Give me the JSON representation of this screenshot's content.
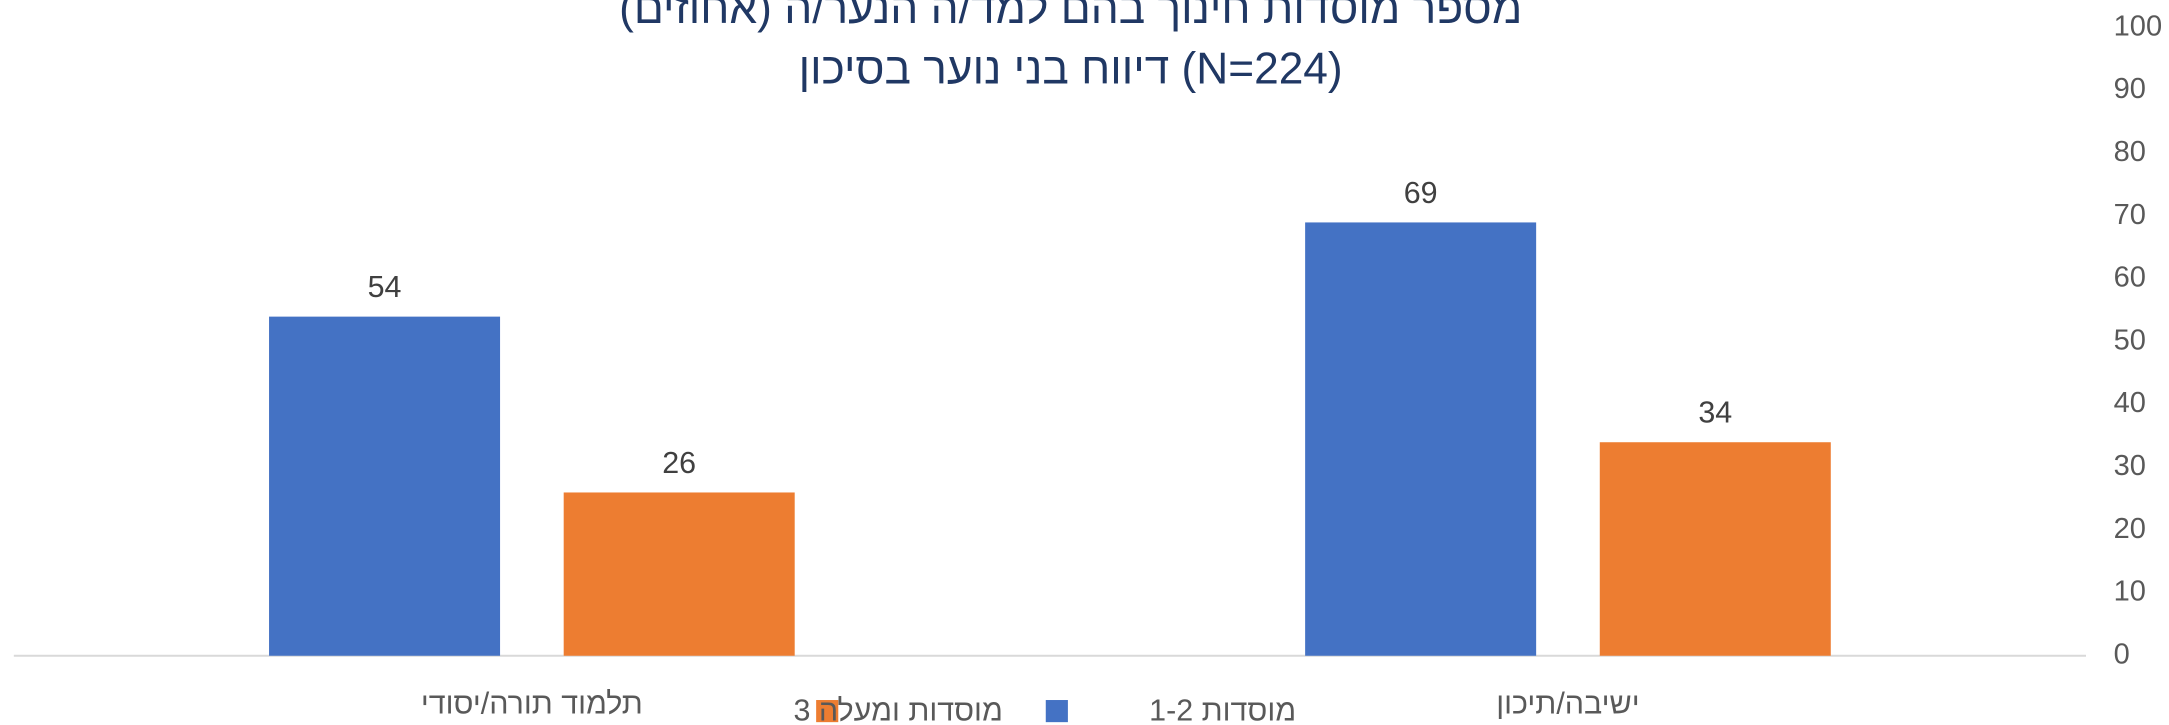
{
  "chart_data": {
    "type": "bar",
    "title": "מספר מוסדות חינוך בהם למד/ה הנער/ה (אחוזים)",
    "subtitle": "דיווח בני נוער בסיכון (N=224)",
    "categories": [
      "ישיבה/תיכון",
      "תלמוד תורה/יסודי"
    ],
    "series": [
      {
        "name": "1-2 מוסדות",
        "color": "#4472c4",
        "values": [
          69,
          54
        ]
      },
      {
        "name": "3 מוסדות ומעלה",
        "color": "#ed7d31",
        "values": [
          34,
          26
        ]
      }
    ],
    "ylim": [
      0,
      100
    ],
    "yticks": [
      0,
      10,
      20,
      30,
      40,
      50,
      60,
      70,
      80,
      90,
      100
    ],
    "y_axis_side": "right",
    "category_direction": "rtl",
    "legend": "bottom",
    "grid": false
  }
}
